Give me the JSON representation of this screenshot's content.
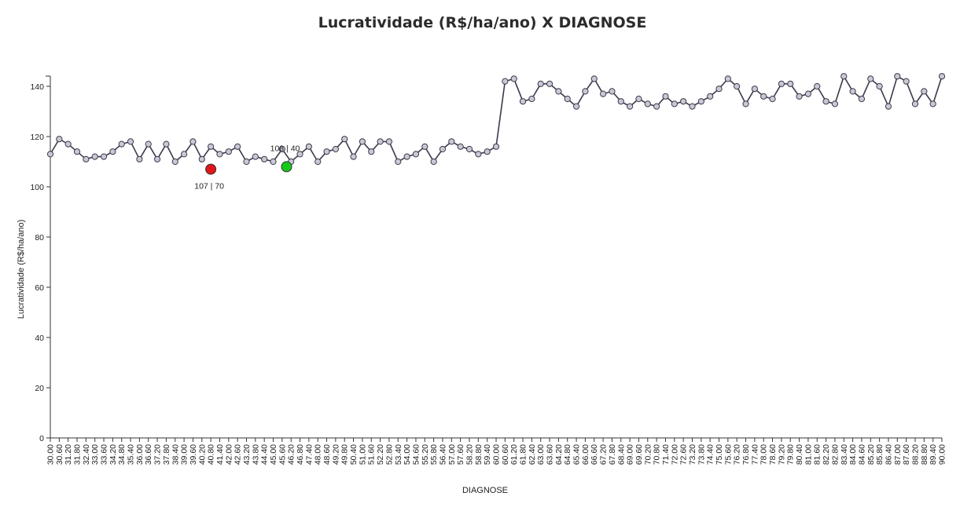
{
  "chart_data": {
    "type": "line",
    "title": "Lucratividade (R$/ha/ano) X DIAGNOSE",
    "xlabel": "DIAGNOSE",
    "ylabel": "Lucratividade (R$/ha/ano)",
    "ylim": [
      0,
      140
    ],
    "yticks": [
      0,
      20,
      40,
      60,
      80,
      100,
      120,
      140
    ],
    "grid": false,
    "colors": {
      "line": "#3a3a4a",
      "marker_fill": "#c9c9d6",
      "highlight_red": "#e0161a",
      "highlight_green": "#17c91b"
    },
    "x": [
      "30.00",
      "30.60",
      "31.20",
      "31.80",
      "32.40",
      "33.00",
      "33.60",
      "34.20",
      "34.80",
      "35.40",
      "36.00",
      "36.60",
      "37.20",
      "37.80",
      "38.40",
      "39.00",
      "39.60",
      "40.20",
      "40.80",
      "41.40",
      "42.00",
      "42.60",
      "43.20",
      "43.80",
      "44.40",
      "45.00",
      "45.60",
      "46.20",
      "46.80",
      "47.40",
      "48.00",
      "48.60",
      "49.20",
      "49.80",
      "50.40",
      "51.00",
      "51.60",
      "52.20",
      "52.80",
      "53.40",
      "54.00",
      "54.60",
      "55.20",
      "55.80",
      "56.40",
      "57.00",
      "57.60",
      "58.20",
      "58.80",
      "59.40",
      "60.00",
      "60.60",
      "61.20",
      "61.80",
      "62.40",
      "63.00",
      "63.60",
      "64.20",
      "64.80",
      "65.40",
      "66.00",
      "66.60",
      "67.20",
      "67.80",
      "68.40",
      "69.00",
      "69.60",
      "70.20",
      "70.80",
      "71.40",
      "72.00",
      "72.60",
      "73.20",
      "73.80",
      "74.40",
      "75.00",
      "75.60",
      "76.20",
      "76.80",
      "77.40",
      "78.00",
      "78.60",
      "79.20",
      "79.80",
      "80.40",
      "81.00",
      "81.60",
      "82.20",
      "82.80",
      "83.40",
      "84.00",
      "84.60",
      "85.20",
      "85.80",
      "86.40",
      "87.00",
      "87.60",
      "88.20",
      "88.80",
      "89.40",
      "90.00"
    ],
    "series": [
      {
        "values": [
          113,
          119,
          117,
          114,
          111,
          112,
          112,
          114,
          117,
          118,
          111,
          117,
          111,
          117,
          110,
          113,
          118,
          111,
          116,
          113,
          114,
          116,
          110,
          112,
          111,
          110,
          115,
          110,
          113,
          116,
          110,
          114,
          115,
          119,
          112,
          118,
          114,
          118,
          118,
          110,
          112,
          113,
          116,
          110,
          115,
          118,
          116,
          115,
          113,
          114,
          116,
          142,
          143,
          134,
          135,
          141,
          141,
          138,
          135,
          132,
          138,
          143,
          137,
          138,
          134,
          132,
          135,
          133,
          132,
          136,
          133,
          134,
          132,
          134,
          136,
          139,
          143,
          140,
          133,
          139,
          136,
          135,
          141,
          141,
          136,
          137,
          140,
          134,
          133,
          144,
          138,
          135,
          143,
          140,
          132,
          144,
          142,
          133,
          138,
          133,
          144
        ]
      }
    ],
    "highlights": [
      {
        "x": "40.80",
        "y": 107,
        "label": "107 | 70",
        "color": "red"
      },
      {
        "x": "45.90",
        "y": 108,
        "label": "108 | 40",
        "color": "green"
      }
    ]
  }
}
